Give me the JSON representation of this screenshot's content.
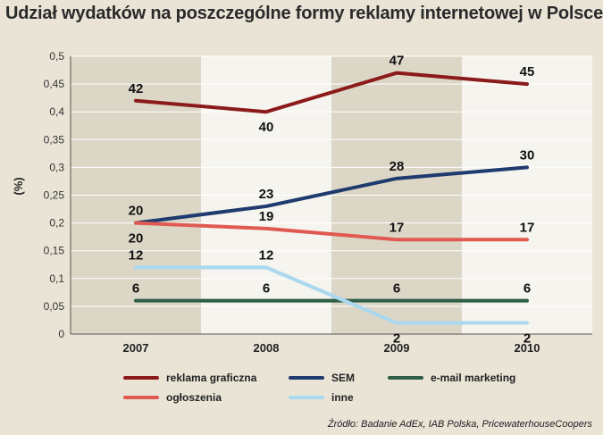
{
  "title": "Udział wydatków na poszczególne formy reklamy internetowej w Polsce",
  "source": "Źródło: Badanie AdEx, IAB Polska, PricewaterhouseCoopers",
  "chart_data": {
    "type": "line",
    "title": "Udział wydatków na poszczególne formy reklamy internetowej w Polsce",
    "ylabel": "(%)",
    "xlabel": "",
    "categories": [
      "2007",
      "2008",
      "2009",
      "2010"
    ],
    "ylim": [
      0,
      0.5
    ],
    "yticks": [
      "0",
      "0,05",
      "0,1",
      "0,15",
      "0,2",
      "0,25",
      "0,3",
      "0,35",
      "0,4",
      "0,45",
      "0,5"
    ],
    "grid": true,
    "legend_position": "bottom",
    "series": [
      {
        "name": "reklama graficzna",
        "color": "#8b1a1a",
        "values": [
          0.42,
          0.4,
          0.47,
          0.45
        ],
        "labels": [
          "42",
          "40",
          "47",
          "45"
        ]
      },
      {
        "name": "SEM",
        "color": "#1e3a6e",
        "values": [
          0.2,
          0.23,
          0.28,
          0.3
        ],
        "labels": [
          "20",
          "23",
          "28",
          "30"
        ]
      },
      {
        "name": "e-mail marketing",
        "color": "#2e5e45",
        "values": [
          0.06,
          0.06,
          0.06,
          0.06
        ],
        "labels": [
          "6",
          "6",
          "6",
          "6"
        ]
      },
      {
        "name": "ogłoszenia",
        "color": "#e05a52",
        "values": [
          0.2,
          0.19,
          0.17,
          0.17
        ],
        "labels": [
          "20",
          "19",
          "17",
          "17"
        ]
      },
      {
        "name": "inne",
        "color": "#a9d8ef",
        "values": [
          0.12,
          0.12,
          0.02,
          0.02
        ],
        "labels": [
          "12",
          "12",
          "2",
          "2"
        ]
      }
    ]
  }
}
